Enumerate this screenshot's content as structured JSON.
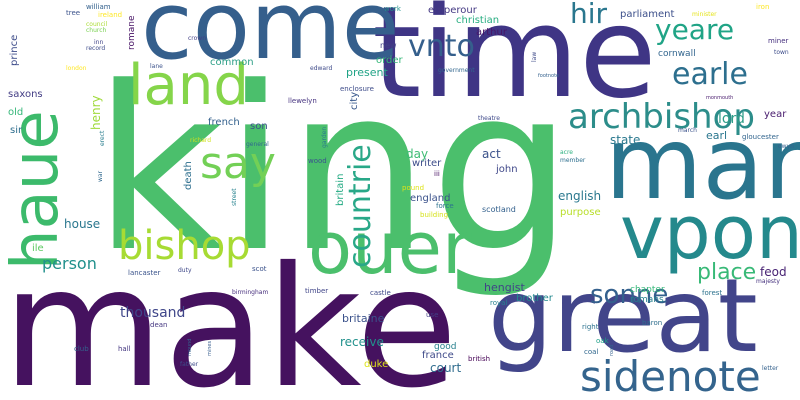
{
  "words": [
    {
      "text": "king",
      "color": "#4bbf6c"
    },
    {
      "text": "make",
      "color": "#45125f"
    },
    {
      "text": "time",
      "color": "#3f3585"
    },
    {
      "text": "come",
      "color": "#355f8c"
    },
    {
      "text": "man",
      "color": "#2a758e"
    },
    {
      "text": "great",
      "color": "#42458a"
    },
    {
      "text": "haue",
      "color": "#3cba6b"
    },
    {
      "text": "ouer",
      "color": "#4bbf6c"
    },
    {
      "text": "vpon",
      "color": "#24898c"
    },
    {
      "text": "land",
      "color": "#85d54a"
    },
    {
      "text": "sidenote",
      "color": "#34648d"
    },
    {
      "text": "bishop",
      "color": "#a7db33"
    },
    {
      "text": "say",
      "color": "#73d056"
    },
    {
      "text": "archbishop",
      "color": "#2c8d8a"
    },
    {
      "text": "earle",
      "color": "#2d6f8e"
    },
    {
      "text": "yeare",
      "color": "#20a486"
    },
    {
      "text": "hir",
      "color": "#2a778e"
    },
    {
      "text": "vnto",
      "color": "#355f8c"
    },
    {
      "text": "countrie",
      "color": "#29a888"
    },
    {
      "text": "sonne",
      "color": "#34608d"
    },
    {
      "text": "place",
      "color": "#38b977"
    },
    {
      "text": "person",
      "color": "#21908c"
    },
    {
      "text": "lord",
      "color": "#2e9e88"
    },
    {
      "text": "english",
      "color": "#2a788e"
    },
    {
      "text": "thousand",
      "color": "#3f4689"
    },
    {
      "text": "britaine",
      "color": "#3b528b"
    },
    {
      "text": "receive",
      "color": "#21918c"
    },
    {
      "text": "court",
      "color": "#2f6c8e"
    },
    {
      "text": "france",
      "color": "#3e4a89"
    },
    {
      "text": "house",
      "color": "#2a778e"
    },
    {
      "text": "act",
      "color": "#3b528b"
    },
    {
      "text": "day",
      "color": "#3ebc74"
    },
    {
      "text": "writer",
      "color": "#3d4d8a"
    },
    {
      "text": "state",
      "color": "#2a788e"
    },
    {
      "text": "earl",
      "color": "#2a768e"
    },
    {
      "text": "feod",
      "color": "#482374"
    },
    {
      "text": "hengist",
      "color": "#414487"
    },
    {
      "text": "brother",
      "color": "#23898e"
    },
    {
      "text": "romans",
      "color": "#26828e"
    },
    {
      "text": "chapter",
      "color": "#35b779"
    },
    {
      "text": "present",
      "color": "#20a386"
    },
    {
      "text": "order",
      "color": "#35b779"
    },
    {
      "text": "common",
      "color": "#2d9f87"
    },
    {
      "text": "cornwall",
      "color": "#32658e"
    },
    {
      "text": "parliament",
      "color": "#3c4f8a"
    },
    {
      "text": "christian",
      "color": "#27ad81"
    },
    {
      "text": "arthur",
      "color": "#481668"
    },
    {
      "text": "emperour",
      "color": "#443983"
    },
    {
      "text": "son",
      "color": "#3b528b"
    },
    {
      "text": "french",
      "color": "#34618d"
    },
    {
      "text": "john",
      "color": "#3f4889"
    },
    {
      "text": "england",
      "color": "#3b528b"
    },
    {
      "text": "scotland",
      "color": "#34618d"
    },
    {
      "text": "purpose",
      "color": "#b8de29"
    },
    {
      "text": "good",
      "color": "#27808e"
    },
    {
      "text": "duke",
      "color": "#dde318"
    },
    {
      "text": "saxons",
      "color": "#433d84"
    },
    {
      "text": "old",
      "color": "#35b779"
    },
    {
      "text": "sir",
      "color": "#2e6e8e"
    },
    {
      "text": "ile",
      "color": "#5ec962"
    },
    {
      "text": "prince",
      "color": "#3e4c8a"
    },
    {
      "text": "henry",
      "color": "#9fda3a"
    },
    {
      "text": "romane",
      "color": "#471365"
    },
    {
      "text": "death",
      "color": "#2e6f8e"
    },
    {
      "text": "britain",
      "color": "#24aa83"
    },
    {
      "text": "city",
      "color": "#38588c"
    },
    {
      "text": "year",
      "color": "#481c6e"
    },
    {
      "text": "force",
      "color": "#2c738e"
    },
    {
      "text": "building",
      "color": "#d5e21a"
    },
    {
      "text": "pound",
      "color": "#dde318"
    },
    {
      "text": "iii",
      "color": "#471063"
    },
    {
      "text": "lancaster",
      "color": "#3a538b"
    },
    {
      "text": "dean",
      "color": "#453781"
    },
    {
      "text": "scot",
      "color": "#3b528b"
    },
    {
      "text": "castle",
      "color": "#3e4989"
    },
    {
      "text": "timber",
      "color": "#404588"
    },
    {
      "text": "birmingham",
      "color": "#472f7d"
    },
    {
      "text": "royal",
      "color": "#26828e"
    },
    {
      "text": "british",
      "color": "#440154"
    },
    {
      "text": "coal",
      "color": "#31688e"
    },
    {
      "text": "right",
      "color": "#2c728e"
    },
    {
      "text": "oak",
      "color": "#1fa088"
    },
    {
      "text": "baron",
      "color": "#2e6e8e"
    },
    {
      "text": "majesty",
      "color": "#46327e"
    },
    {
      "text": "forest",
      "color": "#2c728e"
    },
    {
      "text": "gloucester",
      "color": "#32658e"
    },
    {
      "text": "march",
      "color": "#3b528b"
    },
    {
      "text": "member",
      "color": "#2e6f8e"
    },
    {
      "text": "acre",
      "color": "#2ab07f"
    },
    {
      "text": "new",
      "color": "#424186"
    },
    {
      "text": "law",
      "color": "#3e4a89"
    },
    {
      "text": "work",
      "color": "#20928c"
    },
    {
      "text": "iron",
      "color": "#fde725"
    },
    {
      "text": "miner",
      "color": "#46307e"
    },
    {
      "text": "town",
      "color": "#3d4d8a"
    },
    {
      "text": "owyn",
      "color": "#34608d"
    },
    {
      "text": "minister",
      "color": "#e5e419"
    },
    {
      "text": "edward",
      "color": "#3e4a89"
    },
    {
      "text": "enclosure",
      "color": "#3e4c8a"
    },
    {
      "text": "llewelyn",
      "color": "#46337f"
    },
    {
      "text": "crown",
      "color": "#423f85"
    },
    {
      "text": "lane",
      "color": "#3b528b"
    },
    {
      "text": "wood",
      "color": "#3a548c"
    },
    {
      "text": "garden",
      "color": "#2a788e"
    },
    {
      "text": "general",
      "color": "#31688e"
    },
    {
      "text": "richard",
      "color": "#d0e11c"
    },
    {
      "text": "street",
      "color": "#26828e"
    },
    {
      "text": "theatre",
      "color": "#3e4989"
    },
    {
      "text": "government",
      "color": "#31668e"
    },
    {
      "text": "footnote",
      "color": "#34618d"
    },
    {
      "text": "tree",
      "color": "#3b528b"
    },
    {
      "text": "william",
      "color": "#34618d"
    },
    {
      "text": "ireland",
      "color": "#fde725"
    },
    {
      "text": "council",
      "color": "#aadc32"
    },
    {
      "text": "inn",
      "color": "#414487"
    },
    {
      "text": "record",
      "color": "#3e4c8a"
    },
    {
      "text": "church",
      "color": "#7ad151"
    },
    {
      "text": "london",
      "color": "#fde725"
    },
    {
      "text": "erect",
      "color": "#287d8e"
    },
    {
      "text": "war",
      "color": "#31688e"
    },
    {
      "text": "club",
      "color": "#34618d"
    },
    {
      "text": "hall",
      "color": "#453781"
    },
    {
      "text": "father",
      "color": "#3e4a89"
    },
    {
      "text": "duty",
      "color": "#3f4889"
    },
    {
      "text": "mound",
      "color": "#34618d"
    },
    {
      "text": "mines",
      "color": "#365c8d"
    },
    {
      "text": "use",
      "color": "#423f85"
    },
    {
      "text": "road",
      "color": "#34618d"
    },
    {
      "text": "letter",
      "color": "#34618d"
    },
    {
      "text": "monmouth",
      "color": "#481b6d"
    }
  ]
}
